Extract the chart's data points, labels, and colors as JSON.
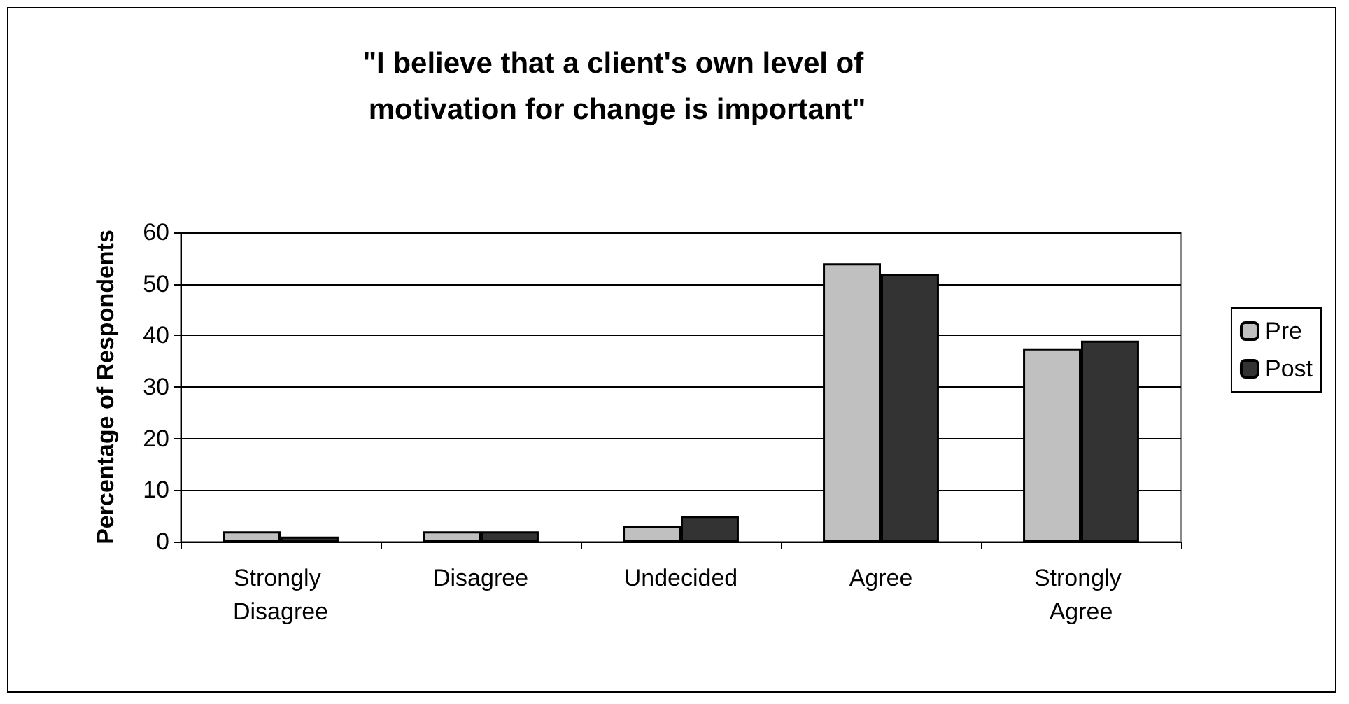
{
  "chart_data": {
    "type": "bar",
    "title": "\"I believe that a client's own level of motivation for change is important\"",
    "ylabel": "Percentage of Respondents",
    "categories": [
      "Strongly Disagree",
      "Disagree",
      "Undecided",
      "Agree",
      "Strongly Agree"
    ],
    "series": [
      {
        "name": "Pre",
        "color": "#c0c0c0",
        "values": [
          2,
          2,
          3,
          54,
          37.5
        ]
      },
      {
        "name": "Post",
        "color": "#333333",
        "values": [
          1,
          2,
          5,
          52,
          39
        ]
      }
    ],
    "ylim": [
      0,
      60
    ],
    "yticks": [
      0,
      10,
      20,
      30,
      40,
      50,
      60
    ],
    "grid": "y",
    "legend": "right"
  }
}
